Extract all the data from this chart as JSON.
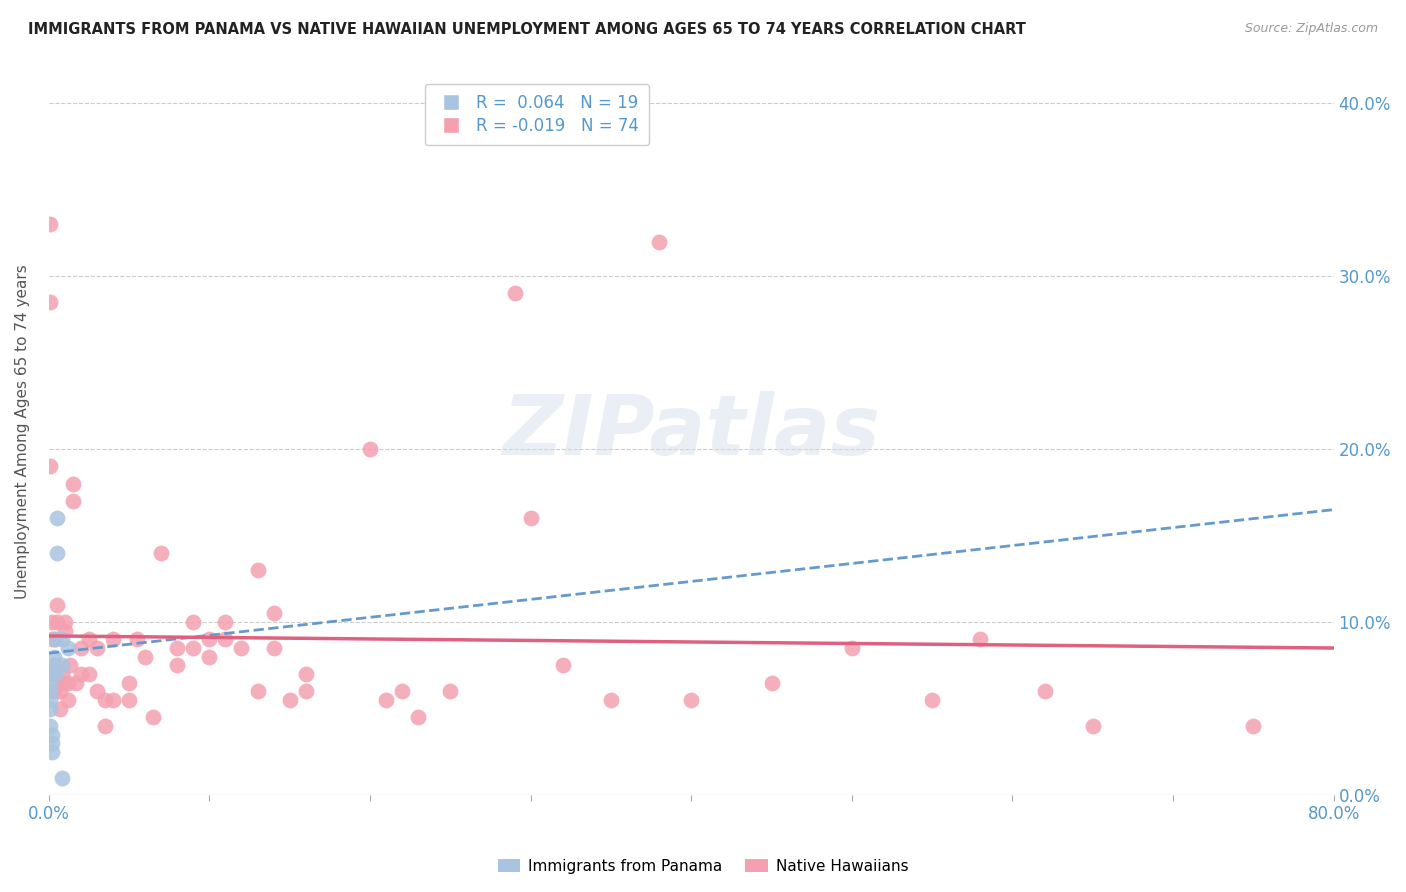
{
  "title": "IMMIGRANTS FROM PANAMA VS NATIVE HAWAIIAN UNEMPLOYMENT AMONG AGES 65 TO 74 YEARS CORRELATION CHART",
  "source": "Source: ZipAtlas.com",
  "ylabel": "Unemployment Among Ages 65 to 74 years",
  "xlim": [
    0.0,
    0.8
  ],
  "ylim": [
    0.0,
    0.42
  ],
  "yticks_right": [
    0.0,
    0.1,
    0.2,
    0.3,
    0.4
  ],
  "ytick_labels_right": [
    "0.0%",
    "10.0%",
    "20.0%",
    "30.0%",
    "40.0%"
  ],
  "xticks": [
    0.0,
    0.1,
    0.2,
    0.3,
    0.4,
    0.5,
    0.6,
    0.7,
    0.8
  ],
  "xtick_labels": [
    "0.0%",
    "",
    "",
    "",
    "",
    "",
    "",
    "",
    "80.0%"
  ],
  "legend1_label": "R =  0.064   N = 19",
  "legend2_label": "R = -0.019   N = 74",
  "color_panama": "#a8c4e0",
  "color_native": "#f4a0b0",
  "color_trendline_panama": "#6699cc",
  "color_trendline_native": "#e06080",
  "background_color": "#ffffff",
  "grid_color": "#cccccc",
  "axis_label_color": "#5599cc",
  "watermark_color": "#d0dde8",
  "panama_x": [
    0.001,
    0.001,
    0.001,
    0.001,
    0.001,
    0.001,
    0.002,
    0.002,
    0.002,
    0.003,
    0.003,
    0.004,
    0.004,
    0.005,
    0.005,
    0.008,
    0.008,
    0.008,
    0.012
  ],
  "panama_y": [
    0.07,
    0.065,
    0.06,
    0.055,
    0.05,
    0.04,
    0.035,
    0.03,
    0.025,
    0.08,
    0.075,
    0.09,
    0.07,
    0.16,
    0.14,
    0.09,
    0.01,
    0.075,
    0.085
  ],
  "native_x": [
    0.001,
    0.001,
    0.001,
    0.002,
    0.002,
    0.003,
    0.003,
    0.004,
    0.004,
    0.005,
    0.005,
    0.006,
    0.007,
    0.007,
    0.008,
    0.009,
    0.01,
    0.01,
    0.012,
    0.012,
    0.013,
    0.015,
    0.015,
    0.017,
    0.02,
    0.02,
    0.025,
    0.025,
    0.03,
    0.03,
    0.035,
    0.035,
    0.04,
    0.04,
    0.05,
    0.05,
    0.055,
    0.06,
    0.065,
    0.07,
    0.08,
    0.08,
    0.09,
    0.09,
    0.1,
    0.1,
    0.11,
    0.11,
    0.12,
    0.13,
    0.14,
    0.14,
    0.15,
    0.16,
    0.16,
    0.38,
    0.2,
    0.55,
    0.13,
    0.21,
    0.22,
    0.23,
    0.25,
    0.29,
    0.3,
    0.32,
    0.35,
    0.4,
    0.45,
    0.5,
    0.58,
    0.62,
    0.65,
    0.75
  ],
  "native_y": [
    0.33,
    0.285,
    0.19,
    0.1,
    0.09,
    0.07,
    0.06,
    0.09,
    0.075,
    0.11,
    0.1,
    0.065,
    0.06,
    0.05,
    0.07,
    0.065,
    0.1,
    0.095,
    0.065,
    0.055,
    0.075,
    0.18,
    0.17,
    0.065,
    0.085,
    0.07,
    0.09,
    0.07,
    0.085,
    0.06,
    0.055,
    0.04,
    0.09,
    0.055,
    0.065,
    0.055,
    0.09,
    0.08,
    0.045,
    0.14,
    0.085,
    0.075,
    0.1,
    0.085,
    0.09,
    0.08,
    0.1,
    0.09,
    0.085,
    0.06,
    0.105,
    0.085,
    0.055,
    0.07,
    0.06,
    0.32,
    0.2,
    0.055,
    0.13,
    0.055,
    0.06,
    0.045,
    0.06,
    0.29,
    0.16,
    0.075,
    0.055,
    0.055,
    0.065,
    0.085,
    0.09,
    0.06,
    0.04,
    0.04
  ],
  "panama_trend_x": [
    0.0,
    0.8
  ],
  "panama_trend_y": [
    0.082,
    0.165
  ],
  "native_trend_x": [
    0.0,
    0.8
  ],
  "native_trend_y": [
    0.092,
    0.085
  ]
}
